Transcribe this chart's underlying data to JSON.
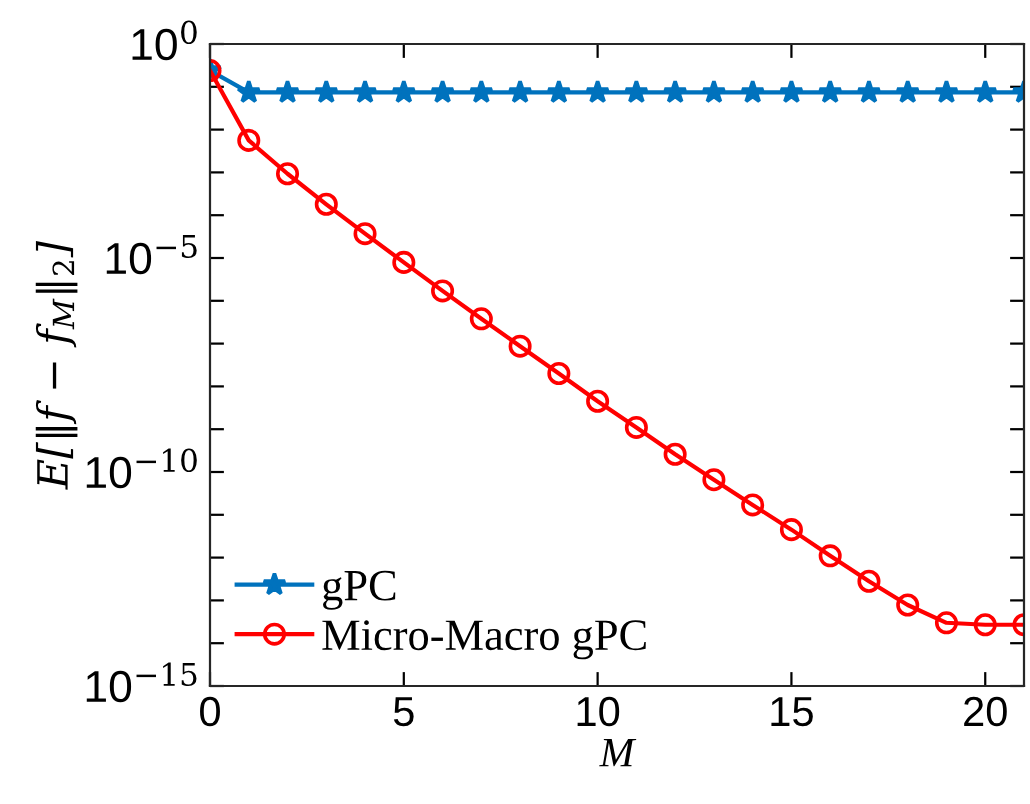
{
  "chart_data": {
    "type": "line",
    "xlabel": "M",
    "ylabel": "E[‖f − f$_{M}$‖$_{2}$]",
    "x": [
      0,
      1,
      2,
      3,
      4,
      5,
      6,
      7,
      8,
      9,
      10,
      11,
      12,
      13,
      14,
      15,
      16,
      17,
      18,
      19,
      20,
      21
    ],
    "series": [
      {
        "name": "gPC",
        "color": "#0072bd",
        "marker": "star",
        "values": [
          0.24,
          0.074,
          0.074,
          0.074,
          0.074,
          0.074,
          0.074,
          0.074,
          0.074,
          0.074,
          0.074,
          0.074,
          0.074,
          0.074,
          0.074,
          0.074,
          0.074,
          0.074,
          0.074,
          0.074,
          0.074,
          0.074
        ]
      },
      {
        "name": "Micro-Macro gPC",
        "color": "#ff0000",
        "marker": "circle",
        "values": [
          0.24,
          0.0056,
          0.00093,
          0.00018,
          3.7e-05,
          7.9e-06,
          1.7e-06,
          3.8e-07,
          8.7e-08,
          2e-08,
          4.5e-09,
          1.1e-09,
          2.6e-10,
          6.6e-11,
          1.7e-11,
          4.5e-12,
          1.1e-12,
          2.8e-13,
          7.8e-14,
          3e-14,
          2.7e-14,
          2.7e-14
        ]
      }
    ],
    "log": "y",
    "xlim": [
      0,
      21
    ],
    "xticks": [
      0,
      5,
      10,
      15,
      20
    ],
    "ylim": [
      1e-15,
      1
    ],
    "yticks": [
      {
        "value": 1,
        "label": "10$^{0}$"
      },
      {
        "value": 0.1,
        "label": null
      },
      {
        "value": 0.01,
        "label": null
      },
      {
        "value": 0.001,
        "label": null
      },
      {
        "value": 0.0001,
        "label": null
      },
      {
        "value": 1e-05,
        "label": "10$^{−5}$"
      },
      {
        "value": 1e-06,
        "label": null
      },
      {
        "value": 1e-07,
        "label": null
      },
      {
        "value": 1e-08,
        "label": null
      },
      {
        "value": 1e-09,
        "label": null
      },
      {
        "value": 1e-10,
        "label": "10$^{−10}$"
      },
      {
        "value": 1e-11,
        "label": null
      },
      {
        "value": 1e-12,
        "label": null
      },
      {
        "value": 1e-13,
        "label": null
      },
      {
        "value": 1e-14,
        "label": null
      },
      {
        "value": 1e-15,
        "label": "10$^{−15}$"
      }
    ],
    "grid": false,
    "legend": "bottom left",
    "line_style": "solid"
  }
}
